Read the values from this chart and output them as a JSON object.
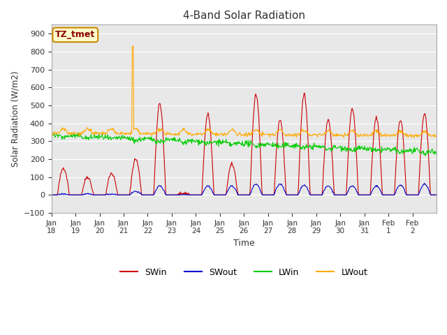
{
  "title": "4-Band Solar Radiation",
  "ylabel": "Solar Radiation (W/m2)",
  "xlabel": "Time",
  "annotation": "TZ_tmet",
  "ylim": [
    -100,
    950
  ],
  "yticks": [
    -100,
    0,
    100,
    200,
    300,
    400,
    500,
    600,
    700,
    800,
    900
  ],
  "background_color": "#e8e8e8",
  "fig_color": "#ffffff",
  "colors": {
    "SWin": "#cc0000",
    "SWout": "#0000cc",
    "LWin": "#00cc00",
    "LWout": "#ffaa00"
  },
  "legend": [
    "SWin",
    "SWout",
    "LWin",
    "LWout"
  ],
  "x_tick_labels": [
    "Jan\n18",
    "Jan\n19",
    "Jan\n20",
    "Jan\n21",
    "Jan\n22",
    "Jan\n23",
    "Jan\n24",
    "Jan\n25",
    "Jan\n26",
    "Jan\n27",
    "Jan\n28",
    "Jan\n29",
    "Jan\n30",
    "Jan\n31",
    "Feb\n1",
    "Feb\n2"
  ],
  "n_days": 16,
  "pts_per_day": 48,
  "SWin_peaks": [
    150,
    100,
    120,
    200,
    510,
    10,
    450,
    170,
    560,
    420,
    560,
    420,
    480,
    430,
    420,
    450
  ],
  "SWout_peaks": [
    5,
    5,
    5,
    20,
    50,
    2,
    50,
    50,
    60,
    60,
    55,
    50,
    50,
    50,
    55,
    60
  ],
  "LWout_spike_day": 3,
  "LWout_spike_val": 830
}
